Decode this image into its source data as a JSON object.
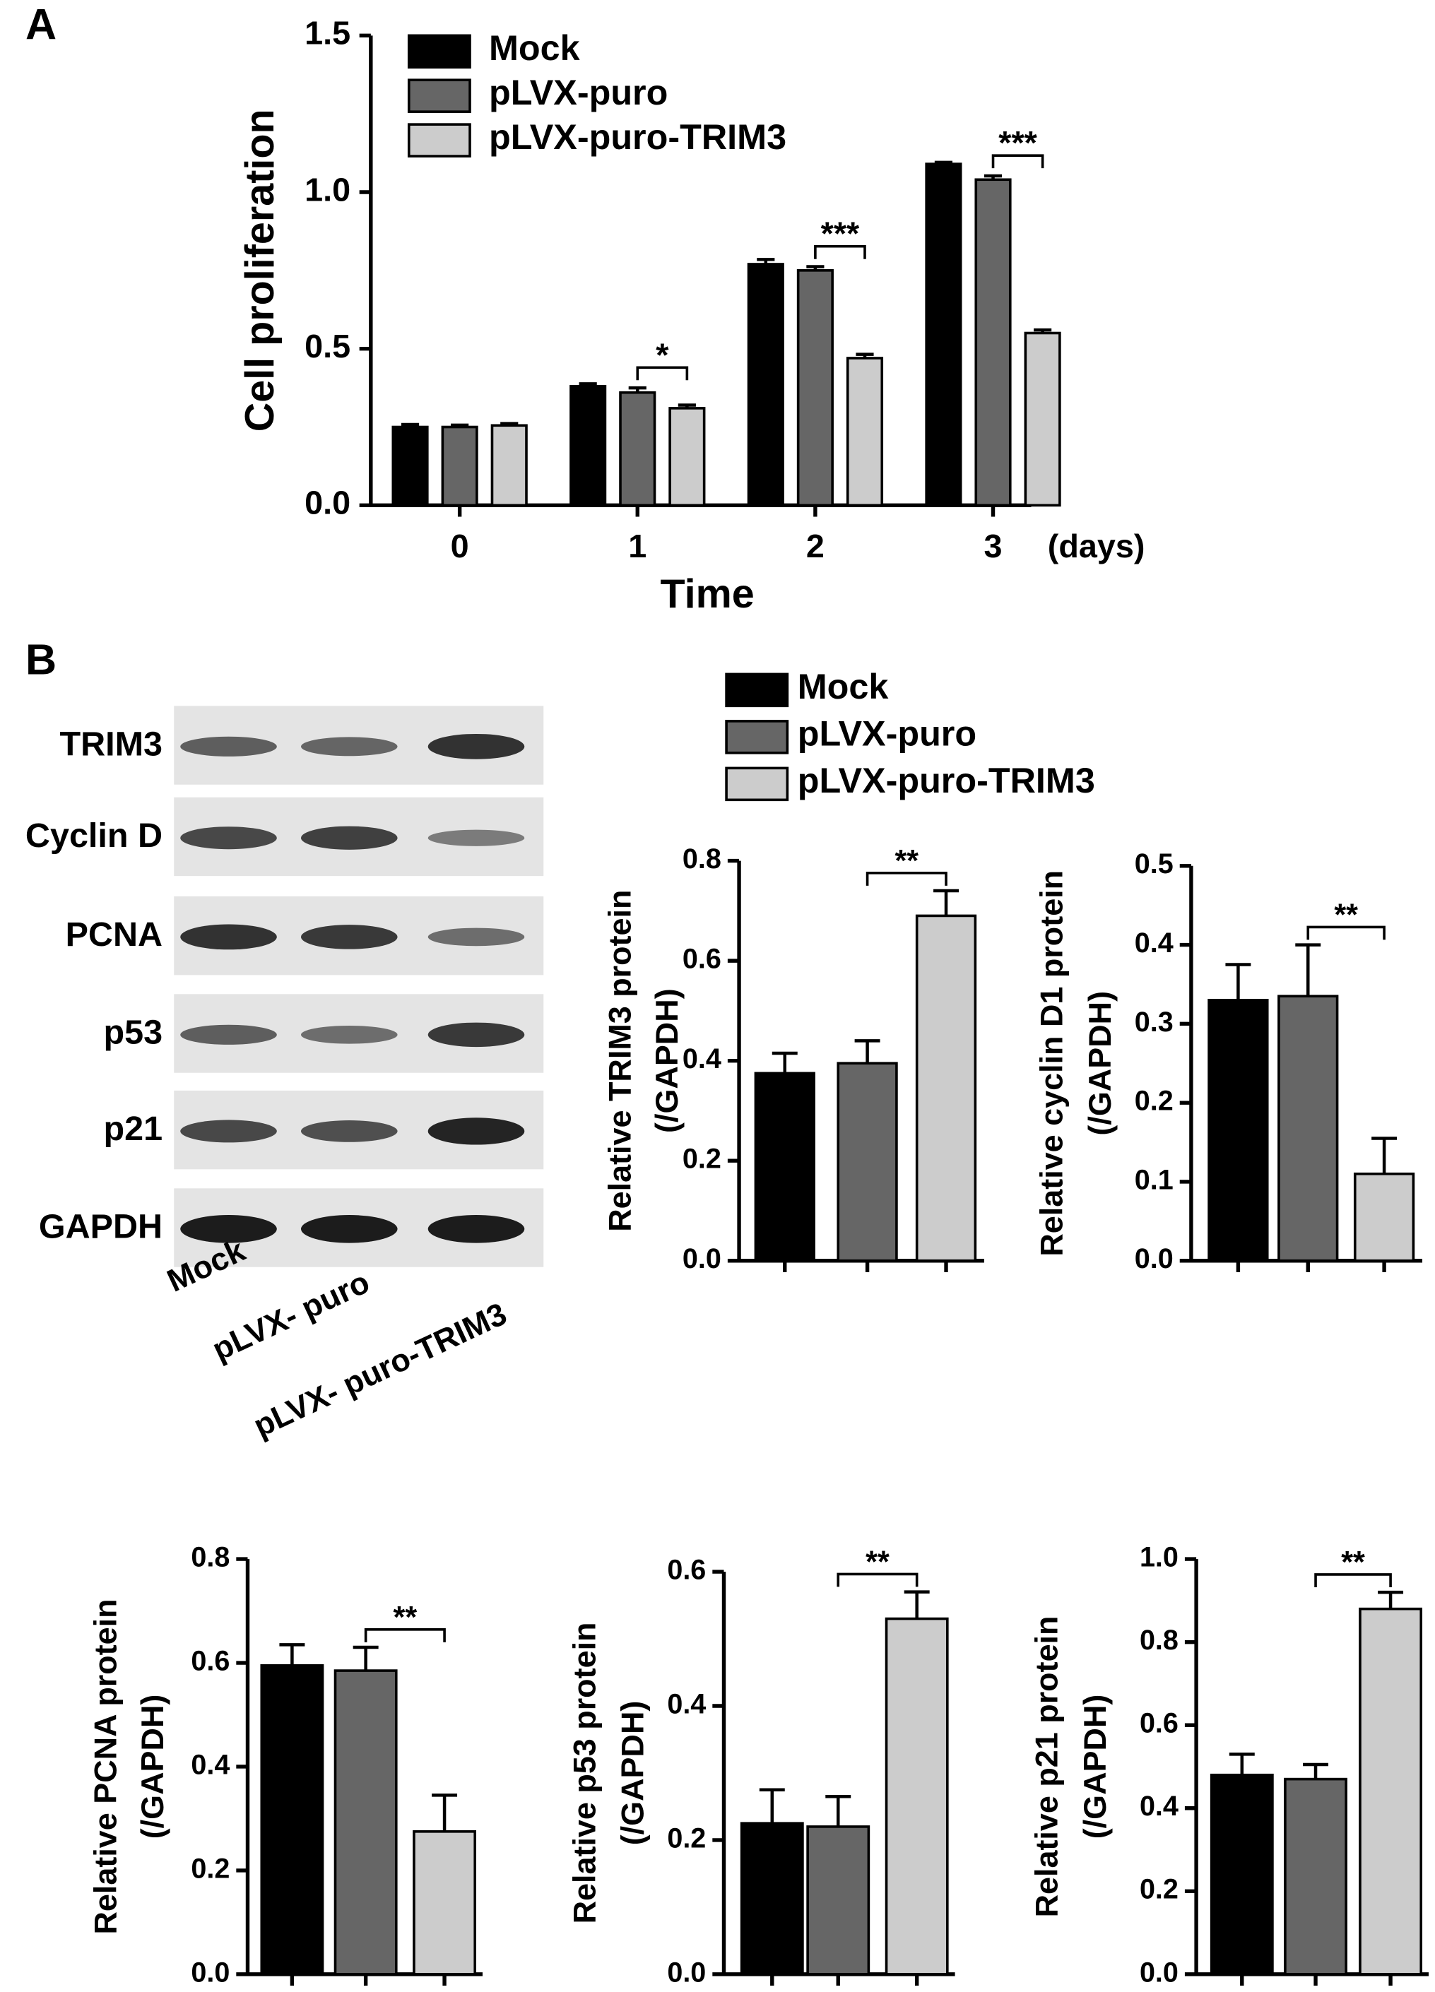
{
  "panel_labels": [
    "A",
    "B"
  ],
  "chart_data": [
    {
      "type": "bar",
      "ylabel": "Cell proliferation",
      "xlabel": "Time",
      "x_unit": "(days)",
      "categories": [
        "0",
        "1",
        "2",
        "3"
      ],
      "series": [
        {
          "name": "Mock",
          "color": "#000000",
          "values": [
            0.25,
            0.38,
            0.77,
            1.09
          ],
          "errors": [
            0.008,
            0.008,
            0.015,
            0.005
          ]
        },
        {
          "name": "pLVX-puro",
          "color": "#666666",
          "values": [
            0.25,
            0.36,
            0.75,
            1.04
          ],
          "errors": [
            0.006,
            0.015,
            0.012,
            0.012
          ]
        },
        {
          "name": "pLVX-puro-TRIM3",
          "color": "#cccccc",
          "values": [
            0.255,
            0.31,
            0.47,
            0.55
          ],
          "errors": [
            0.006,
            0.01,
            0.012,
            0.01
          ]
        }
      ],
      "ylim": [
        0,
        1.5
      ],
      "yticks": [
        {
          "value": 0,
          "label": "0.0"
        },
        0.5,
        {
          "value": 1,
          "label": "1.0"
        },
        1.5
      ],
      "significance": [
        {
          "category": "1",
          "label": "*"
        },
        {
          "category": "2",
          "label": "***"
        },
        {
          "category": "3",
          "label": "***"
        }
      ]
    },
    {
      "type": "bar",
      "ylabel": [
        "Relative TRIM3 protein",
        "(/GAPDH)"
      ],
      "categories": [
        null,
        null,
        null
      ],
      "values": [
        0.375,
        0.395,
        0.69
      ],
      "errors": [
        0.04,
        0.045,
        0.05
      ],
      "colors": [
        "#000000",
        "#666666",
        "#cccccc"
      ],
      "ylim": [
        0,
        0.8
      ],
      "yticks": [
        {
          "value": 0,
          "label": "0.0"
        },
        0.2,
        0.4,
        0.6,
        0.8
      ],
      "significance": "**"
    },
    {
      "type": "bar",
      "ylabel": [
        "Relative  cyclin D1 protein",
        "(/GAPDH)"
      ],
      "categories": [
        null,
        null,
        null
      ],
      "values": [
        0.33,
        0.335,
        0.11
      ],
      "errors": [
        0.045,
        0.065,
        0.045
      ],
      "colors": [
        "#000000",
        "#666666",
        "#cccccc"
      ],
      "ylim": [
        0,
        0.5
      ],
      "yticks": [
        {
          "value": 0,
          "label": "0.0"
        },
        0.1,
        0.2,
        0.3,
        0.4,
        0.5
      ],
      "significance": "**"
    },
    {
      "type": "bar",
      "ylabel": [
        "Relative PCNA protein",
        "(/GAPDH)"
      ],
      "categories": [
        null,
        null,
        null
      ],
      "values": [
        0.595,
        0.585,
        0.275
      ],
      "errors": [
        0.04,
        0.045,
        0.07
      ],
      "colors": [
        "#000000",
        "#666666",
        "#cccccc"
      ],
      "ylim": [
        0,
        0.8
      ],
      "yticks": [
        {
          "value": 0,
          "label": "0.0"
        },
        0.2,
        0.4,
        0.6,
        0.8
      ],
      "significance": "**"
    },
    {
      "type": "bar",
      "ylabel": [
        "Relative p53 protein",
        "(/GAPDH)"
      ],
      "categories": [
        null,
        null,
        null
      ],
      "values": [
        0.225,
        0.22,
        0.53
      ],
      "errors": [
        0.05,
        0.045,
        0.04
      ],
      "colors": [
        "#000000",
        "#666666",
        "#cccccc"
      ],
      "ylim": [
        0,
        0.6
      ],
      "yticks": [
        {
          "value": 0,
          "label": "0.0"
        },
        0.2,
        0.4,
        0.6
      ],
      "significance": "**"
    },
    {
      "type": "bar",
      "ylabel": [
        "Relative p21 protein",
        "(/GAPDH)"
      ],
      "categories": [
        null,
        null,
        null
      ],
      "values": [
        0.48,
        0.47,
        0.88
      ],
      "errors": [
        0.05,
        0.035,
        0.04
      ],
      "colors": [
        "#000000",
        "#666666",
        "#cccccc"
      ],
      "ylim": [
        0,
        1.0
      ],
      "yticks": [
        {
          "value": 0,
          "label": "0.0"
        },
        0.2,
        0.4,
        0.6,
        0.8,
        {
          "value": 1,
          "label": "1.0"
        }
      ],
      "significance": "**"
    }
  ],
  "legend": [
    {
      "name": "Mock",
      "color": "#000000"
    },
    {
      "name": "pLVX-puro",
      "color": "#666666"
    },
    {
      "name": "pLVX-puro-TRIM3",
      "color": "#cccccc"
    }
  ],
  "blot": {
    "rows": [
      "TRIM3",
      "Cyclin D",
      "PCNA",
      "p53",
      "p21",
      "GAPDH"
    ],
    "lanes": [
      "Mock",
      "pLVX- puro",
      "pLVX- puro-TRIM3"
    ]
  }
}
